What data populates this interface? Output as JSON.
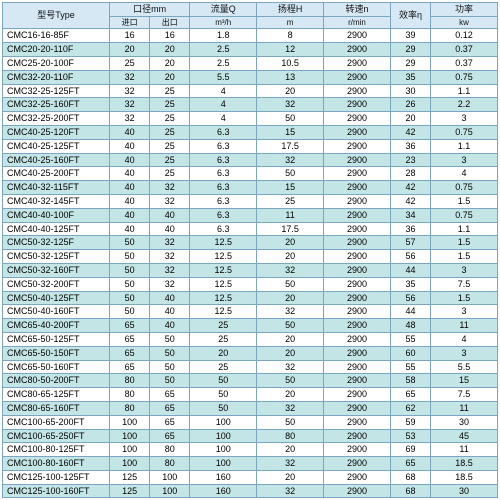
{
  "headers": {
    "type": {
      "top": "型号Type",
      "sub": ""
    },
    "inlet": {
      "top": "口径mm",
      "sub": "进口"
    },
    "outlet": {
      "top": "",
      "sub": "出口"
    },
    "flow": {
      "top": "流量Q",
      "sub": "m³/h"
    },
    "head": {
      "top": "扬程H",
      "sub": "m"
    },
    "speed": {
      "top": "转速n",
      "sub": "r/min"
    },
    "eff": {
      "top": "效率η",
      "sub": ""
    },
    "power": {
      "top": "功率",
      "sub": "kw"
    }
  },
  "rows": [
    {
      "type": "CMC16-16-85F",
      "in": "16",
      "out": "16",
      "q": "1.8",
      "h": "8",
      "n": "2900",
      "e": "39",
      "p": "0.12"
    },
    {
      "type": "CMC20-20-110F",
      "in": "20",
      "out": "20",
      "q": "2.5",
      "h": "12",
      "n": "2900",
      "e": "29",
      "p": "0.37"
    },
    {
      "type": "CMC25-20-100F",
      "in": "25",
      "out": "20",
      "q": "2.5",
      "h": "10.5",
      "n": "2900",
      "e": "29",
      "p": "0.37"
    },
    {
      "type": "CMC32-20-110F",
      "in": "32",
      "out": "20",
      "q": "5.5",
      "h": "13",
      "n": "2900",
      "e": "35",
      "p": "0.75"
    },
    {
      "type": "CMC32-25-125FT",
      "in": "32",
      "out": "25",
      "q": "4",
      "h": "20",
      "n": "2900",
      "e": "30",
      "p": "1.1"
    },
    {
      "type": "CMC32-25-160FT",
      "in": "32",
      "out": "25",
      "q": "4",
      "h": "32",
      "n": "2900",
      "e": "26",
      "p": "2.2"
    },
    {
      "type": "CMC32-25-200FT",
      "in": "32",
      "out": "25",
      "q": "4",
      "h": "50",
      "n": "2900",
      "e": "20",
      "p": "3"
    },
    {
      "type": "CMC40-25-120FT",
      "in": "40",
      "out": "25",
      "q": "6.3",
      "h": "15",
      "n": "2900",
      "e": "42",
      "p": "0.75"
    },
    {
      "type": "CMC40-25-125FT",
      "in": "40",
      "out": "25",
      "q": "6.3",
      "h": "17.5",
      "n": "2900",
      "e": "36",
      "p": "1.1"
    },
    {
      "type": "CMC40-25-160FT",
      "in": "40",
      "out": "25",
      "q": "6.3",
      "h": "32",
      "n": "2900",
      "e": "23",
      "p": "3"
    },
    {
      "type": "CMC40-25-200FT",
      "in": "40",
      "out": "25",
      "q": "6.3",
      "h": "50",
      "n": "2900",
      "e": "28",
      "p": "4"
    },
    {
      "type": "CMC40-32-115FT",
      "in": "40",
      "out": "32",
      "q": "6.3",
      "h": "15",
      "n": "2900",
      "e": "42",
      "p": "0.75"
    },
    {
      "type": "CMC40-32-145FT",
      "in": "40",
      "out": "32",
      "q": "6.3",
      "h": "25",
      "n": "2900",
      "e": "42",
      "p": "1.5"
    },
    {
      "type": "CMC40-40-100F",
      "in": "40",
      "out": "40",
      "q": "6.3",
      "h": "11",
      "n": "2900",
      "e": "34",
      "p": "0.75"
    },
    {
      "type": "CMC40-40-125FT",
      "in": "40",
      "out": "40",
      "q": "6.3",
      "h": "17.5",
      "n": "2900",
      "e": "36",
      "p": "1.1"
    },
    {
      "type": "CMC50-32-125F",
      "in": "50",
      "out": "32",
      "q": "12.5",
      "h": "20",
      "n": "2900",
      "e": "57",
      "p": "1.5"
    },
    {
      "type": "CMC50-32-125FT",
      "in": "50",
      "out": "32",
      "q": "12.5",
      "h": "20",
      "n": "2900",
      "e": "56",
      "p": "1.5"
    },
    {
      "type": "CMC50-32-160FT",
      "in": "50",
      "out": "32",
      "q": "12.5",
      "h": "32",
      "n": "2900",
      "e": "44",
      "p": "3"
    },
    {
      "type": "CMC50-32-200FT",
      "in": "50",
      "out": "32",
      "q": "12.5",
      "h": "50",
      "n": "2900",
      "e": "35",
      "p": "7.5"
    },
    {
      "type": "CMC50-40-125FT",
      "in": "50",
      "out": "40",
      "q": "12.5",
      "h": "20",
      "n": "2900",
      "e": "56",
      "p": "1.5"
    },
    {
      "type": "CMC50-40-160FT",
      "in": "50",
      "out": "40",
      "q": "12.5",
      "h": "32",
      "n": "2900",
      "e": "44",
      "p": "3"
    },
    {
      "type": "CMC65-40-200FT",
      "in": "65",
      "out": "40",
      "q": "25",
      "h": "50",
      "n": "2900",
      "e": "48",
      "p": "11"
    },
    {
      "type": "CMC65-50-125FT",
      "in": "65",
      "out": "50",
      "q": "25",
      "h": "20",
      "n": "2900",
      "e": "55",
      "p": "4"
    },
    {
      "type": "CMC65-50-150FT",
      "in": "65",
      "out": "50",
      "q": "20",
      "h": "20",
      "n": "2900",
      "e": "60",
      "p": "3"
    },
    {
      "type": "CMC65-50-160FT",
      "in": "65",
      "out": "50",
      "q": "25",
      "h": "32",
      "n": "2900",
      "e": "55",
      "p": "5.5"
    },
    {
      "type": "CMC80-50-200FT",
      "in": "80",
      "out": "50",
      "q": "50",
      "h": "50",
      "n": "2900",
      "e": "58",
      "p": "15"
    },
    {
      "type": "CMC80-65-125FT",
      "in": "80",
      "out": "65",
      "q": "50",
      "h": "20",
      "n": "2900",
      "e": "65",
      "p": "7.5"
    },
    {
      "type": "CMC80-65-160FT",
      "in": "80",
      "out": "65",
      "q": "50",
      "h": "32",
      "n": "2900",
      "e": "62",
      "p": "11"
    },
    {
      "type": "CMC100-65-200FT",
      "in": "100",
      "out": "65",
      "q": "100",
      "h": "50",
      "n": "2900",
      "e": "59",
      "p": "30"
    },
    {
      "type": "CMC100-65-250FT",
      "in": "100",
      "out": "65",
      "q": "100",
      "h": "80",
      "n": "2900",
      "e": "53",
      "p": "45"
    },
    {
      "type": "CMC100-80-125FT",
      "in": "100",
      "out": "80",
      "q": "100",
      "h": "20",
      "n": "2900",
      "e": "69",
      "p": "11"
    },
    {
      "type": "CMC100-80-160FT",
      "in": "100",
      "out": "80",
      "q": "100",
      "h": "32",
      "n": "2900",
      "e": "65",
      "p": "18.5"
    },
    {
      "type": "CMC125-100-125FT",
      "in": "125",
      "out": "100",
      "q": "160",
      "h": "20",
      "n": "2900",
      "e": "68",
      "p": "18.5"
    },
    {
      "type": "CMC125-100-160FT",
      "in": "125",
      "out": "100",
      "q": "160",
      "h": "32",
      "n": "2900",
      "e": "68",
      "p": "30"
    }
  ]
}
